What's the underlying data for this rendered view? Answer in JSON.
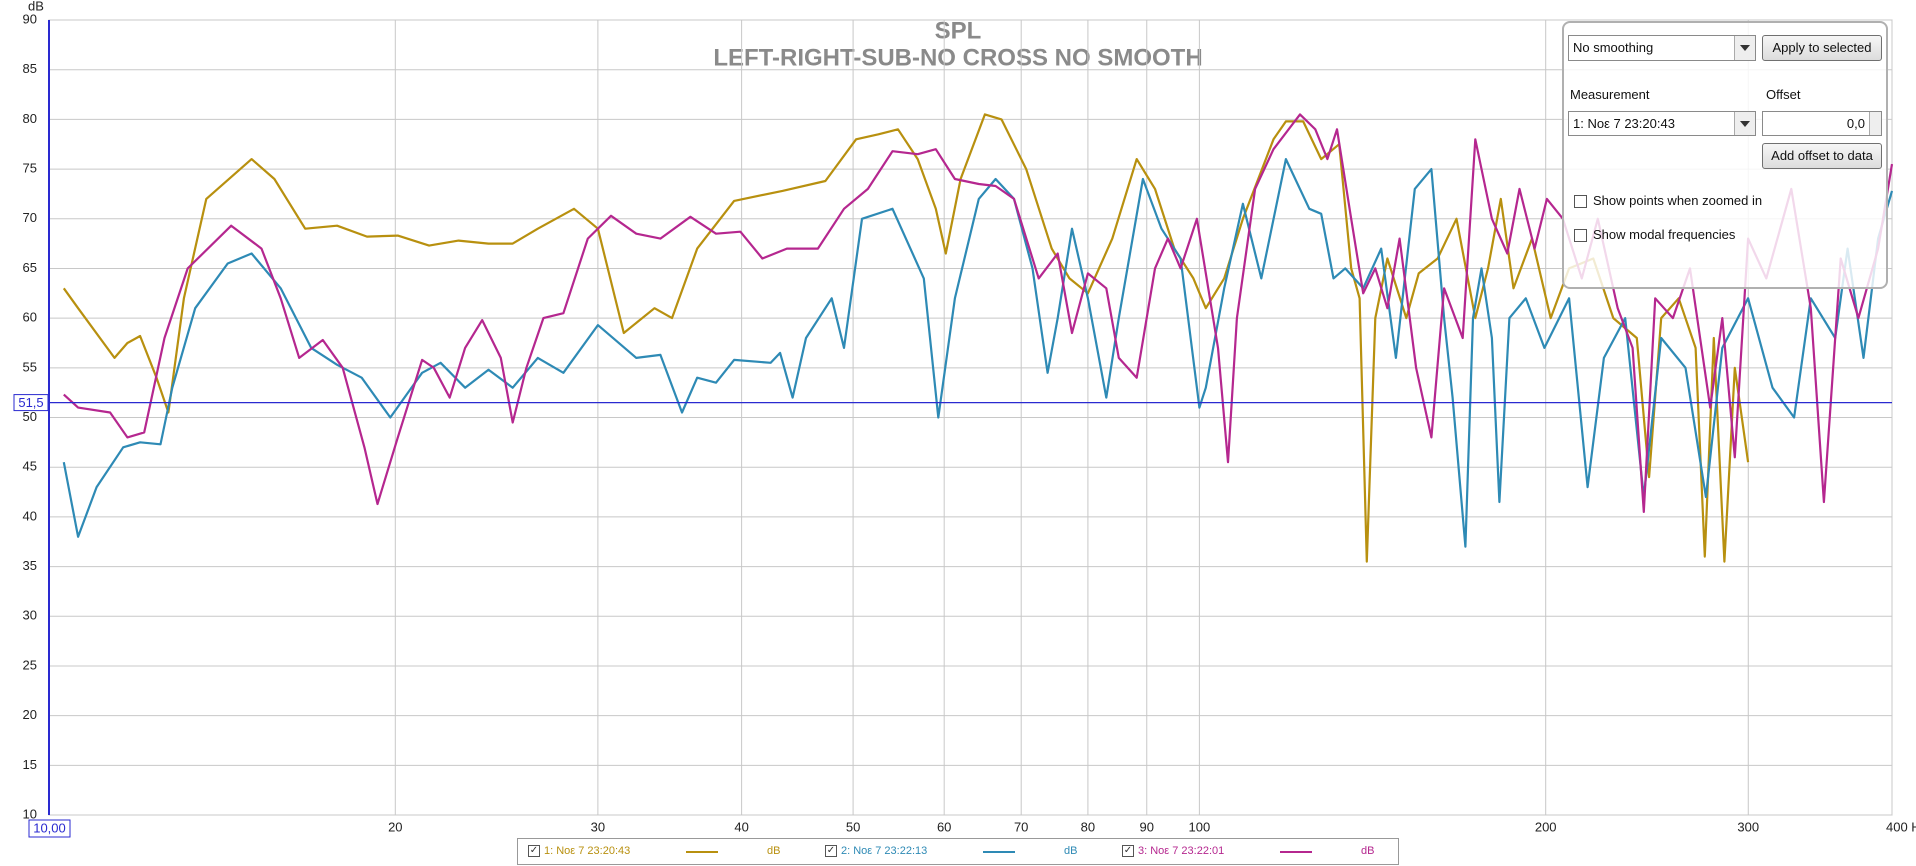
{
  "chart_data": {
    "type": "line",
    "title": "SPL",
    "subtitle": "LEFT-RIGHT-SUB-NO CROSS NO SMOOTH",
    "y_label": "dB",
    "xscale": "log",
    "grid": true,
    "xlim": [
      10,
      400
    ],
    "ylim": [
      10,
      90
    ],
    "xticks": [
      20,
      30,
      40,
      50,
      60,
      70,
      80,
      90,
      100,
      200,
      300,
      {
        "value": 400,
        "label": "400 Hz"
      }
    ],
    "yticks": [
      10,
      15,
      20,
      25,
      30,
      35,
      40,
      45,
      50,
      55,
      60,
      65,
      70,
      75,
      80,
      85,
      90
    ],
    "cursor": {
      "x": {
        "value": 10,
        "label": "10,00"
      },
      "y": {
        "value": 51.5,
        "label": "51,5"
      }
    },
    "series": [
      {
        "name": "1: Νοε 7 23:20:43",
        "unit": "dB",
        "color": "#b8900f",
        "x": [
          10.3,
          10.6,
          11.4,
          11.7,
          12.0,
          12.4,
          12.7,
          13.1,
          13.7,
          15.0,
          15.7,
          16.7,
          17.8,
          18.9,
          20.1,
          21.4,
          22.7,
          24.1,
          25.3,
          26.6,
          28.6,
          30.0,
          31.6,
          33.6,
          34.8,
          36.6,
          39.4,
          43.4,
          47.3,
          50.3,
          52.6,
          54.7,
          56.9,
          59.0,
          60.2,
          62.0,
          65.1,
          67.3,
          70.7,
          74.4,
          77.1,
          80.0,
          84.0,
          88.2,
          91.5,
          95.1,
          98.8,
          101.3,
          105.1,
          109.1,
          116.0,
          118.9,
          123.1,
          127.6,
          132.3,
          135.5,
          137.8,
          139.8,
          142.2,
          145.7,
          151.3,
          155.1,
          161.1,
          167.3,
          173.7,
          178.2,
          182.8,
          187.5,
          194.6,
          202.0,
          209.6,
          220,
          229,
          240,
          246,
          252,
          261,
          270,
          275,
          280,
          286,
          292,
          299.9
        ],
        "values": [
          63,
          61,
          56,
          57.5,
          58.2,
          54,
          50.5,
          62,
          72,
          76,
          74,
          69,
          69.3,
          68.2,
          68.3,
          67.3,
          67.8,
          67.5,
          67.5,
          69,
          71,
          69,
          58.5,
          61,
          60,
          67,
          71.8,
          72.8,
          73.8,
          78,
          78.5,
          79,
          76,
          71,
          66.5,
          74,
          80.5,
          80,
          75,
          67,
          64,
          62.5,
          68,
          76,
          73,
          67,
          64,
          61,
          64,
          70,
          78,
          79.8,
          79.8,
          76,
          77.5,
          65,
          62,
          35.5,
          60,
          66,
          60,
          64.5,
          66,
          70,
          60,
          65,
          72,
          63,
          68,
          60,
          65,
          66,
          60,
          58,
          44,
          60,
          62,
          57,
          36,
          58,
          35.5,
          55,
          45.5
        ]
      },
      {
        "name": "2: Νοε 7 23:22:13",
        "unit": "dB",
        "color": "#2e8ab5",
        "x": [
          10.3,
          10.6,
          11.0,
          11.6,
          12.0,
          12.5,
          12.8,
          13.4,
          14.3,
          15.0,
          15.9,
          16.9,
          17.8,
          18.7,
          19.8,
          21.1,
          21.9,
          23.0,
          24.1,
          25.3,
          26.6,
          28.0,
          30.0,
          32.4,
          34.0,
          35.5,
          36.6,
          38.0,
          39.4,
          42.4,
          43.2,
          44.3,
          45.5,
          47.9,
          49.1,
          50.9,
          54.1,
          57.6,
          59.3,
          61.3,
          64.3,
          66.5,
          69.0,
          71.6,
          73.8,
          75.3,
          77.5,
          80.0,
          83.0,
          85.1,
          89.3,
          92.7,
          96.3,
          100.0,
          101.3,
          105.1,
          109.1,
          113.2,
          118.9,
          124.6,
          127.6,
          130.8,
          133.9,
          138.8,
          143.9,
          148.2,
          153.9,
          159.1,
          163.2,
          166.0,
          170.3,
          172.9,
          175.9,
          179.6,
          182.3,
          186.0,
          192.2,
          199.5,
          209.6,
          217.5,
          224.7,
          234.5,
          243.4,
          252.0,
          264.6,
          275.6,
          284.8,
          299.9,
          314.9,
          328.8,
          340.0,
          357.0,
          366,
          377.8,
          389,
          400
        ],
        "values": [
          45.5,
          38,
          43,
          47,
          47.5,
          47.3,
          53,
          61,
          65.5,
          66.5,
          63,
          57,
          55.3,
          54,
          50,
          54.5,
          55.5,
          53,
          54.8,
          53,
          56,
          54.5,
          59.3,
          56,
          56.3,
          50.5,
          54,
          53.5,
          55.8,
          55.5,
          56.5,
          52,
          58,
          62,
          57,
          70,
          71,
          64,
          50,
          62,
          72,
          74,
          72,
          65,
          54.5,
          60,
          69,
          62,
          52,
          60,
          74,
          69,
          66,
          51,
          53,
          63,
          71.5,
          64,
          76,
          71,
          70.5,
          64,
          65,
          63,
          67,
          56,
          73,
          75,
          60,
          52,
          37,
          60,
          65,
          58,
          41.5,
          60,
          62,
          57,
          62,
          43,
          56,
          60,
          42,
          58,
          55,
          42,
          57,
          62,
          53,
          50,
          62,
          58,
          67,
          56,
          68,
          72.8
        ]
      },
      {
        "name": "3: Νοε 7 23:22:01",
        "unit": "dB",
        "color": "#b5278f",
        "x": [
          10.3,
          10.6,
          11.3,
          11.7,
          12.1,
          12.6,
          13.2,
          14.4,
          15.3,
          15.9,
          16.5,
          17.3,
          18.0,
          18.8,
          19.3,
          20.1,
          21.1,
          21.6,
          22.3,
          23.0,
          23.8,
          24.7,
          25.3,
          26.0,
          26.9,
          28.0,
          29.4,
          30.8,
          32.4,
          34.0,
          36.1,
          38.0,
          39.9,
          41.7,
          43.8,
          46.6,
          49.1,
          51.5,
          54.1,
          56.9,
          59.0,
          61.3,
          64.3,
          66.5,
          69.0,
          72.5,
          75.3,
          77.5,
          80.0,
          83.0,
          85.1,
          88.2,
          91.5,
          93.9,
          96.3,
          99.5,
          103.8,
          105.9,
          107.8,
          111.8,
          116.0,
          122.3,
          126.1,
          129.2,
          131.7,
          135.5,
          138.8,
          142.2,
          145.7,
          149.3,
          154.3,
          159.1,
          163.2,
          169.4,
          173.7,
          179.6,
          185.2,
          189.8,
          195.6,
          200.5,
          207,
          215,
          222,
          231,
          238,
          243.4,
          249,
          258,
          267,
          278,
          284.8,
          292,
          299.9,
          311,
          327,
          340,
          349,
          361,
          374,
          389,
          400
        ],
        "values": [
          52.3,
          51,
          50.5,
          48,
          48.5,
          58,
          65,
          69.3,
          67,
          62,
          56,
          57.8,
          55,
          47,
          41.3,
          48,
          55.8,
          55,
          52,
          57,
          59.8,
          56,
          49.5,
          55,
          60,
          60.5,
          68,
          70.3,
          68.5,
          68,
          70.2,
          68.5,
          68.7,
          66,
          67,
          67,
          71,
          73,
          76.8,
          76.5,
          77,
          74,
          73.5,
          73.3,
          72,
          64,
          66.5,
          58.5,
          64.5,
          63,
          56,
          54,
          65,
          68,
          65,
          70,
          57,
          45.5,
          60,
          73,
          77,
          80.5,
          79,
          76,
          79,
          70,
          62.5,
          65,
          61,
          68,
          55,
          48,
          63,
          58,
          78,
          70,
          66.5,
          73,
          67,
          72,
          70,
          64,
          70,
          61,
          57,
          40.5,
          62,
          60,
          65,
          51,
          60,
          46,
          68,
          64,
          73,
          61,
          41.5,
          66,
          60,
          67,
          75.5
        ]
      }
    ]
  },
  "panel": {
    "smoothing": "No  smoothing",
    "apply_button": "Apply to selected",
    "measurement_label": "Measurement",
    "measurement": "1: Νοε 7 23:20:43",
    "offset_label": "Offset",
    "offset": "0,0",
    "add_offset_button": "Add offset to data",
    "options": [
      "Show points when zoomed in",
      "Show modal frequencies"
    ]
  }
}
